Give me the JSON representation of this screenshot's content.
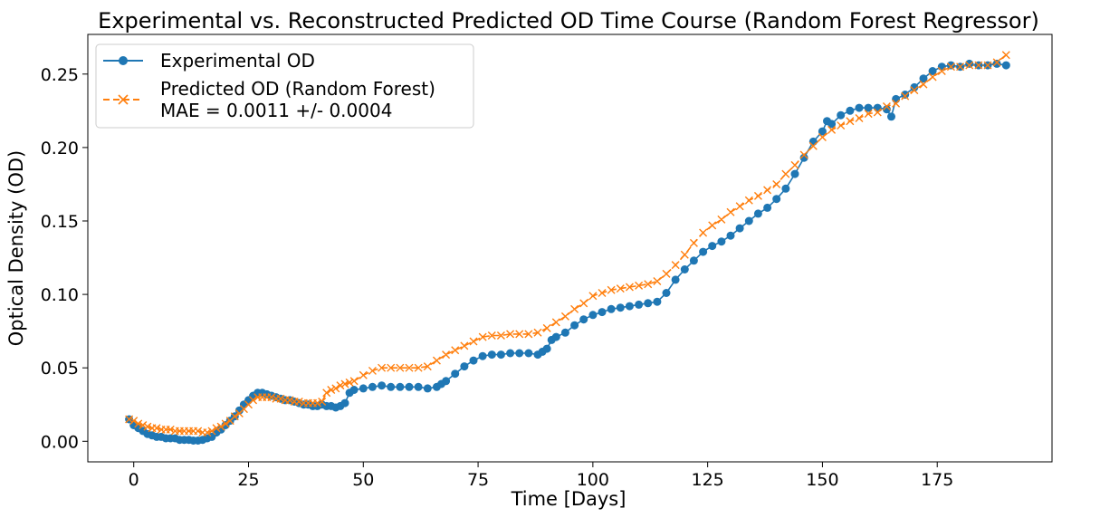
{
  "chart_data": {
    "type": "line",
    "title": "Experimental vs. Reconstructed Predicted OD Time Course (Random Forest Regressor)",
    "xlabel": "Time [Days]",
    "ylabel": "Optical Density (OD)",
    "xlim": [
      -10,
      200
    ],
    "ylim": [
      -0.014,
      0.277
    ],
    "xticks": [
      0,
      25,
      50,
      75,
      100,
      125,
      150,
      175
    ],
    "yticks": [
      0.0,
      0.05,
      0.1,
      0.15,
      0.2,
      0.25
    ],
    "xtick_labels": [
      "0",
      "25",
      "50",
      "75",
      "100",
      "125",
      "150",
      "175"
    ],
    "ytick_labels": [
      "0.00",
      "0.05",
      "0.10",
      "0.15",
      "0.20",
      "0.25"
    ],
    "grid": false,
    "legend_position": "upper-left",
    "series": [
      {
        "name": "Experimental OD",
        "color": "#1f77b4",
        "line_style": "solid",
        "marker": "circle",
        "x": [
          -1,
          0,
          1,
          2,
          3,
          4,
          5,
          6,
          7,
          8,
          9,
          10,
          11,
          12,
          13,
          14,
          15,
          16,
          17,
          18,
          19,
          20,
          21,
          22,
          23,
          24,
          25,
          26,
          27,
          28,
          29,
          30,
          31,
          32,
          33,
          34,
          35,
          36,
          37,
          38,
          39,
          40,
          41,
          42,
          43,
          44,
          45,
          46,
          47,
          48,
          50,
          52,
          54,
          56,
          58,
          60,
          62,
          64,
          66,
          67,
          68,
          70,
          72,
          74,
          76,
          78,
          80,
          82,
          84,
          86,
          88,
          89,
          90,
          91,
          92,
          94,
          96,
          98,
          100,
          102,
          104,
          106,
          108,
          110,
          112,
          114,
          116,
          118,
          120,
          122,
          124,
          126,
          128,
          130,
          132,
          134,
          136,
          138,
          140,
          142,
          144,
          146,
          148,
          150,
          151,
          152,
          154,
          156,
          158,
          160,
          162,
          164,
          165,
          166,
          168,
          170,
          172,
          174,
          176,
          178,
          180,
          182,
          184,
          186,
          188,
          190
        ],
        "y": [
          0.015,
          0.011,
          0.009,
          0.007,
          0.005,
          0.004,
          0.003,
          0.003,
          0.002,
          0.002,
          0.002,
          0.001,
          0.001,
          0.001,
          0.0005,
          0.0005,
          0.001,
          0.002,
          0.003,
          0.006,
          0.008,
          0.011,
          0.014,
          0.017,
          0.021,
          0.025,
          0.028,
          0.031,
          0.033,
          0.033,
          0.032,
          0.031,
          0.03,
          0.029,
          0.028,
          0.028,
          0.027,
          0.026,
          0.025,
          0.025,
          0.024,
          0.024,
          0.025,
          0.024,
          0.024,
          0.023,
          0.024,
          0.026,
          0.033,
          0.035,
          0.036,
          0.037,
          0.038,
          0.037,
          0.037,
          0.037,
          0.037,
          0.036,
          0.037,
          0.039,
          0.041,
          0.046,
          0.051,
          0.055,
          0.058,
          0.059,
          0.059,
          0.06,
          0.06,
          0.06,
          0.059,
          0.061,
          0.063,
          0.069,
          0.071,
          0.074,
          0.079,
          0.083,
          0.086,
          0.088,
          0.09,
          0.091,
          0.092,
          0.093,
          0.094,
          0.095,
          0.101,
          0.11,
          0.117,
          0.123,
          0.129,
          0.133,
          0.136,
          0.14,
          0.145,
          0.15,
          0.155,
          0.159,
          0.165,
          0.172,
          0.182,
          0.193,
          0.204,
          0.211,
          0.218,
          0.216,
          0.222,
          0.225,
          0.227,
          0.227,
          0.227,
          0.226,
          0.221,
          0.233,
          0.236,
          0.241,
          0.247,
          0.252,
          0.255,
          0.256,
          0.255,
          0.257,
          0.256,
          0.256,
          0.257,
          0.256
        ]
      },
      {
        "name": "Predicted OD (Random Forest)",
        "name_line2": "MAE = 0.0011 +/- 0.0004",
        "color": "#ff7f0e",
        "line_style": "dashed",
        "marker": "x",
        "x": [
          -1,
          0,
          1,
          2,
          3,
          4,
          5,
          6,
          7,
          8,
          9,
          10,
          11,
          12,
          13,
          14,
          15,
          16,
          17,
          18,
          19,
          20,
          21,
          22,
          23,
          24,
          25,
          26,
          27,
          28,
          29,
          30,
          31,
          32,
          33,
          34,
          35,
          36,
          37,
          38,
          39,
          40,
          41,
          42,
          43,
          44,
          45,
          46,
          47,
          48,
          50,
          52,
          54,
          56,
          58,
          60,
          62,
          64,
          66,
          68,
          70,
          72,
          74,
          76,
          78,
          80,
          82,
          84,
          86,
          88,
          90,
          92,
          94,
          96,
          98,
          100,
          102,
          104,
          106,
          108,
          110,
          112,
          114,
          116,
          118,
          120,
          122,
          124,
          126,
          128,
          130,
          132,
          134,
          136,
          138,
          140,
          142,
          144,
          146,
          148,
          150,
          152,
          154,
          156,
          158,
          160,
          162,
          164,
          166,
          168,
          170,
          172,
          174,
          176,
          178,
          180,
          182,
          184,
          186,
          188,
          190
        ],
        "y": [
          0.015,
          0.014,
          0.012,
          0.011,
          0.01,
          0.009,
          0.009,
          0.008,
          0.008,
          0.008,
          0.007,
          0.007,
          0.007,
          0.007,
          0.007,
          0.007,
          0.006,
          0.006,
          0.007,
          0.009,
          0.01,
          0.012,
          0.014,
          0.017,
          0.019,
          0.022,
          0.025,
          0.028,
          0.03,
          0.03,
          0.03,
          0.03,
          0.029,
          0.029,
          0.028,
          0.028,
          0.027,
          0.027,
          0.026,
          0.026,
          0.026,
          0.026,
          0.027,
          0.033,
          0.035,
          0.036,
          0.038,
          0.039,
          0.04,
          0.041,
          0.045,
          0.048,
          0.05,
          0.05,
          0.05,
          0.05,
          0.05,
          0.051,
          0.055,
          0.059,
          0.062,
          0.065,
          0.068,
          0.071,
          0.072,
          0.072,
          0.073,
          0.073,
          0.073,
          0.074,
          0.077,
          0.081,
          0.085,
          0.09,
          0.094,
          0.099,
          0.101,
          0.103,
          0.104,
          0.105,
          0.106,
          0.107,
          0.109,
          0.114,
          0.12,
          0.127,
          0.135,
          0.142,
          0.147,
          0.151,
          0.156,
          0.16,
          0.164,
          0.167,
          0.171,
          0.175,
          0.182,
          0.188,
          0.195,
          0.201,
          0.207,
          0.212,
          0.215,
          0.218,
          0.22,
          0.223,
          0.224,
          0.228,
          0.23,
          0.235,
          0.239,
          0.243,
          0.248,
          0.252,
          0.255,
          0.255,
          0.256,
          0.256,
          0.256,
          0.258,
          0.263
        ]
      }
    ]
  }
}
